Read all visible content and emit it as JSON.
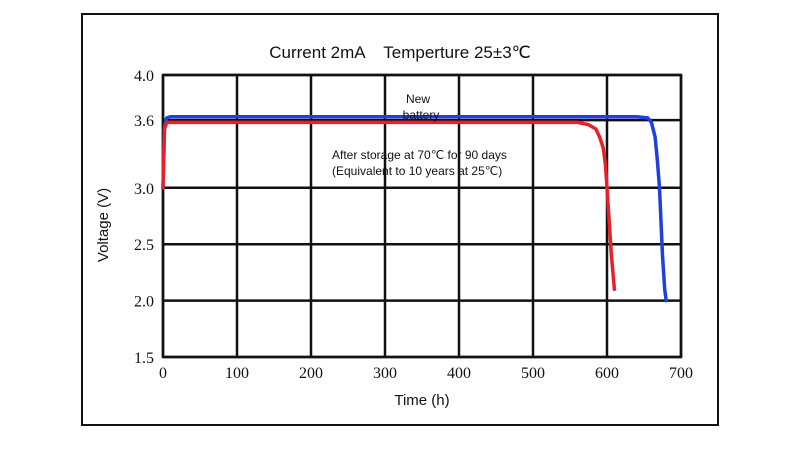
{
  "chart_data": {
    "type": "line",
    "title": "Current 2mA    Temperture 25±3℃",
    "xlabel": "Time (h)",
    "ylabel": "Voltage (V)",
    "xlim": [
      0,
      700
    ],
    "ylim": [
      1.5,
      4.0
    ],
    "xticks": [
      "0",
      "100",
      "200",
      "300",
      "400",
      "500",
      "600",
      "700"
    ],
    "yticks": [
      "1.5",
      "2.0",
      "2.5",
      "3.0",
      "3.6",
      "4.0"
    ],
    "grid": true,
    "series": [
      {
        "name": "New battery",
        "color": "#1f3fe0",
        "x": [
          0,
          2,
          5,
          10,
          50,
          200,
          400,
          600,
          640,
          655,
          660,
          665,
          668,
          671,
          673,
          675,
          678,
          680
        ],
        "y": [
          3.0,
          3.55,
          3.62,
          3.63,
          3.63,
          3.63,
          3.63,
          3.63,
          3.63,
          3.62,
          3.58,
          3.45,
          3.25,
          3.0,
          2.7,
          2.4,
          2.1,
          2.0
        ]
      },
      {
        "name": "After storage at 70℃ for 90 days (Equivalent to 10 years at 25℃)",
        "color": "#e8202a",
        "x": [
          0,
          2,
          5,
          10,
          50,
          200,
          400,
          560,
          575,
          585,
          590,
          595,
          598,
          600,
          603,
          606,
          610
        ],
        "y": [
          3.0,
          3.52,
          3.58,
          3.58,
          3.58,
          3.58,
          3.58,
          3.58,
          3.56,
          3.52,
          3.45,
          3.35,
          3.2,
          3.0,
          2.7,
          2.4,
          2.1
        ]
      }
    ]
  },
  "annotations": {
    "new_line1": "New",
    "new_line2": "battery",
    "storage_line1": "After storage at 70℃ for 90 days",
    "storage_line2": "(Equivalent to 10 years at 25℃)"
  }
}
